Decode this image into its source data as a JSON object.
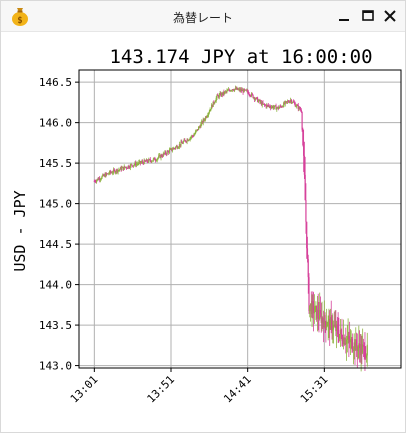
{
  "window": {
    "title": "為替レート",
    "icon": "money-bag-icon",
    "controls": [
      "minimize-icon",
      "maximize-icon",
      "close-icon"
    ]
  },
  "colors": {
    "up_candle": "#8db33f",
    "down_candle": "#d6409a",
    "grid": "#b0b0b0",
    "axis": "#000000"
  },
  "chart_data": {
    "type": "candlestick",
    "title": "143.174 JPY at 16:00:00",
    "ylabel": "USD - JPY",
    "xlabel": "",
    "grid": true,
    "ylim": [
      142.97,
      146.65
    ],
    "xlim_minutes": [
      -10,
      200
    ],
    "x_ticks": [
      "13:01",
      "13:51",
      "14:41",
      "15:31"
    ],
    "x_tick_minutes": [
      0,
      50,
      100,
      150
    ],
    "y_ticks": [
      143.0,
      143.5,
      144.0,
      144.5,
      145.0,
      145.5,
      146.0,
      146.5
    ],
    "y_tick_labels": [
      "143.0",
      "143.5",
      "144.0",
      "144.5",
      "145.0",
      "145.5",
      "146.0",
      "146.5"
    ],
    "anchors": [
      {
        "t": 0,
        "v": 145.28
      },
      {
        "t": 10,
        "v": 145.38
      },
      {
        "t": 25,
        "v": 145.48
      },
      {
        "t": 40,
        "v": 145.55
      },
      {
        "t": 55,
        "v": 145.72
      },
      {
        "t": 65,
        "v": 145.85
      },
      {
        "t": 72,
        "v": 146.05
      },
      {
        "t": 80,
        "v": 146.32
      },
      {
        "t": 90,
        "v": 146.42
      },
      {
        "t": 100,
        "v": 146.38
      },
      {
        "t": 110,
        "v": 146.22
      },
      {
        "t": 120,
        "v": 146.18
      },
      {
        "t": 128,
        "v": 146.28
      },
      {
        "t": 135,
        "v": 146.15
      },
      {
        "t": 137,
        "v": 145.3
      },
      {
        "t": 140,
        "v": 143.75
      },
      {
        "t": 145,
        "v": 143.65
      },
      {
        "t": 150,
        "v": 143.55
      },
      {
        "t": 155,
        "v": 143.5
      },
      {
        "t": 162,
        "v": 143.35
      },
      {
        "t": 170,
        "v": 143.25
      },
      {
        "t": 178,
        "v": 143.17
      }
    ]
  }
}
